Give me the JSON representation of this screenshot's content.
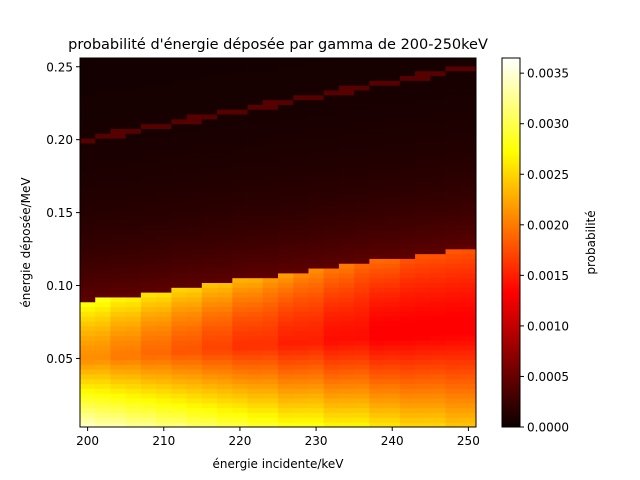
{
  "chart_data": {
    "type": "heatmap",
    "title": "probabilité d'énergie déposée par gamma de 200-250keV",
    "xlabel": "énergie incidente/keV",
    "ylabel": "énergie déposée/MeV",
    "colorbar_label": "probabilité",
    "colormap": "hot",
    "x_range": [
      199,
      251
    ],
    "y_range": [
      0.003,
      0.256
    ],
    "color_range": [
      0,
      0.00365
    ],
    "x_ticks": [
      "200",
      "210",
      "220",
      "230",
      "240",
      "250"
    ],
    "y_ticks": [
      "0.05",
      "0.10",
      "0.15",
      "0.20",
      "0.25"
    ],
    "colorbar_ticks": [
      "0.0000",
      "0.0005",
      "0.0010",
      "0.0015",
      "0.0020",
      "0.0025",
      "0.0030",
      "0.0035"
    ],
    "x_centers": [
      200,
      202,
      204,
      206,
      208,
      210,
      212,
      214,
      216,
      218,
      220,
      222,
      224,
      226,
      228,
      230,
      232,
      234,
      236,
      238,
      240,
      242,
      244,
      246,
      248,
      250
    ],
    "y_bin_width": 0.0033,
    "compton_edge_MeV": [
      0.089,
      0.091,
      0.092,
      0.093,
      0.095,
      0.096,
      0.098,
      0.099,
      0.101,
      0.102,
      0.104,
      0.105,
      0.106,
      0.108,
      0.109,
      0.111,
      0.112,
      0.114,
      0.115,
      0.117,
      0.118,
      0.119,
      0.121,
      0.122,
      0.124,
      0.125
    ],
    "photopeak_MeV": [
      0.2,
      0.202,
      0.204,
      0.206,
      0.208,
      0.21,
      0.212,
      0.214,
      0.216,
      0.218,
      0.22,
      0.222,
      0.224,
      0.226,
      0.228,
      0.23,
      0.232,
      0.234,
      0.236,
      0.238,
      0.24,
      0.242,
      0.244,
      0.246,
      0.248,
      0.25
    ],
    "probability_at_low_energy": [
      0.0036,
      0.0035,
      0.0035,
      0.0034,
      0.0034,
      0.0033,
      0.0033,
      0.0032,
      0.0032,
      0.0031,
      0.0031,
      0.003,
      0.003,
      0.0029,
      0.0029,
      0.0029,
      0.0028,
      0.0028,
      0.0028,
      0.0027,
      0.0027,
      0.0026,
      0.0026,
      0.0026,
      0.0025,
      0.0025
    ],
    "probability_near_edge": [
      0.0028,
      0.0028,
      0.0027,
      0.0027,
      0.0026,
      0.0026,
      0.0025,
      0.0025,
      0.0024,
      0.0024,
      0.0023,
      0.0023,
      0.0022,
      0.0022,
      0.0021,
      0.0021,
      0.002,
      0.002,
      0.0019,
      0.0019,
      0.0019,
      0.0018,
      0.0018,
      0.0018,
      0.0018,
      0.0018
    ],
    "probability_minimum_mid": [
      0.0021,
      0.0021,
      0.002,
      0.002,
      0.0019,
      0.0019,
      0.0018,
      0.0018,
      0.0017,
      0.0017,
      0.0016,
      0.0016,
      0.0016,
      0.0015,
      0.0015,
      0.0015,
      0.0014,
      0.0014,
      0.0014,
      0.0013,
      0.0013,
      0.0013,
      0.0013,
      0.0013,
      0.0013,
      0.0013
    ],
    "probability_above_edge": 0.0004,
    "probability_photopeak": 0.0004,
    "grid": false
  }
}
